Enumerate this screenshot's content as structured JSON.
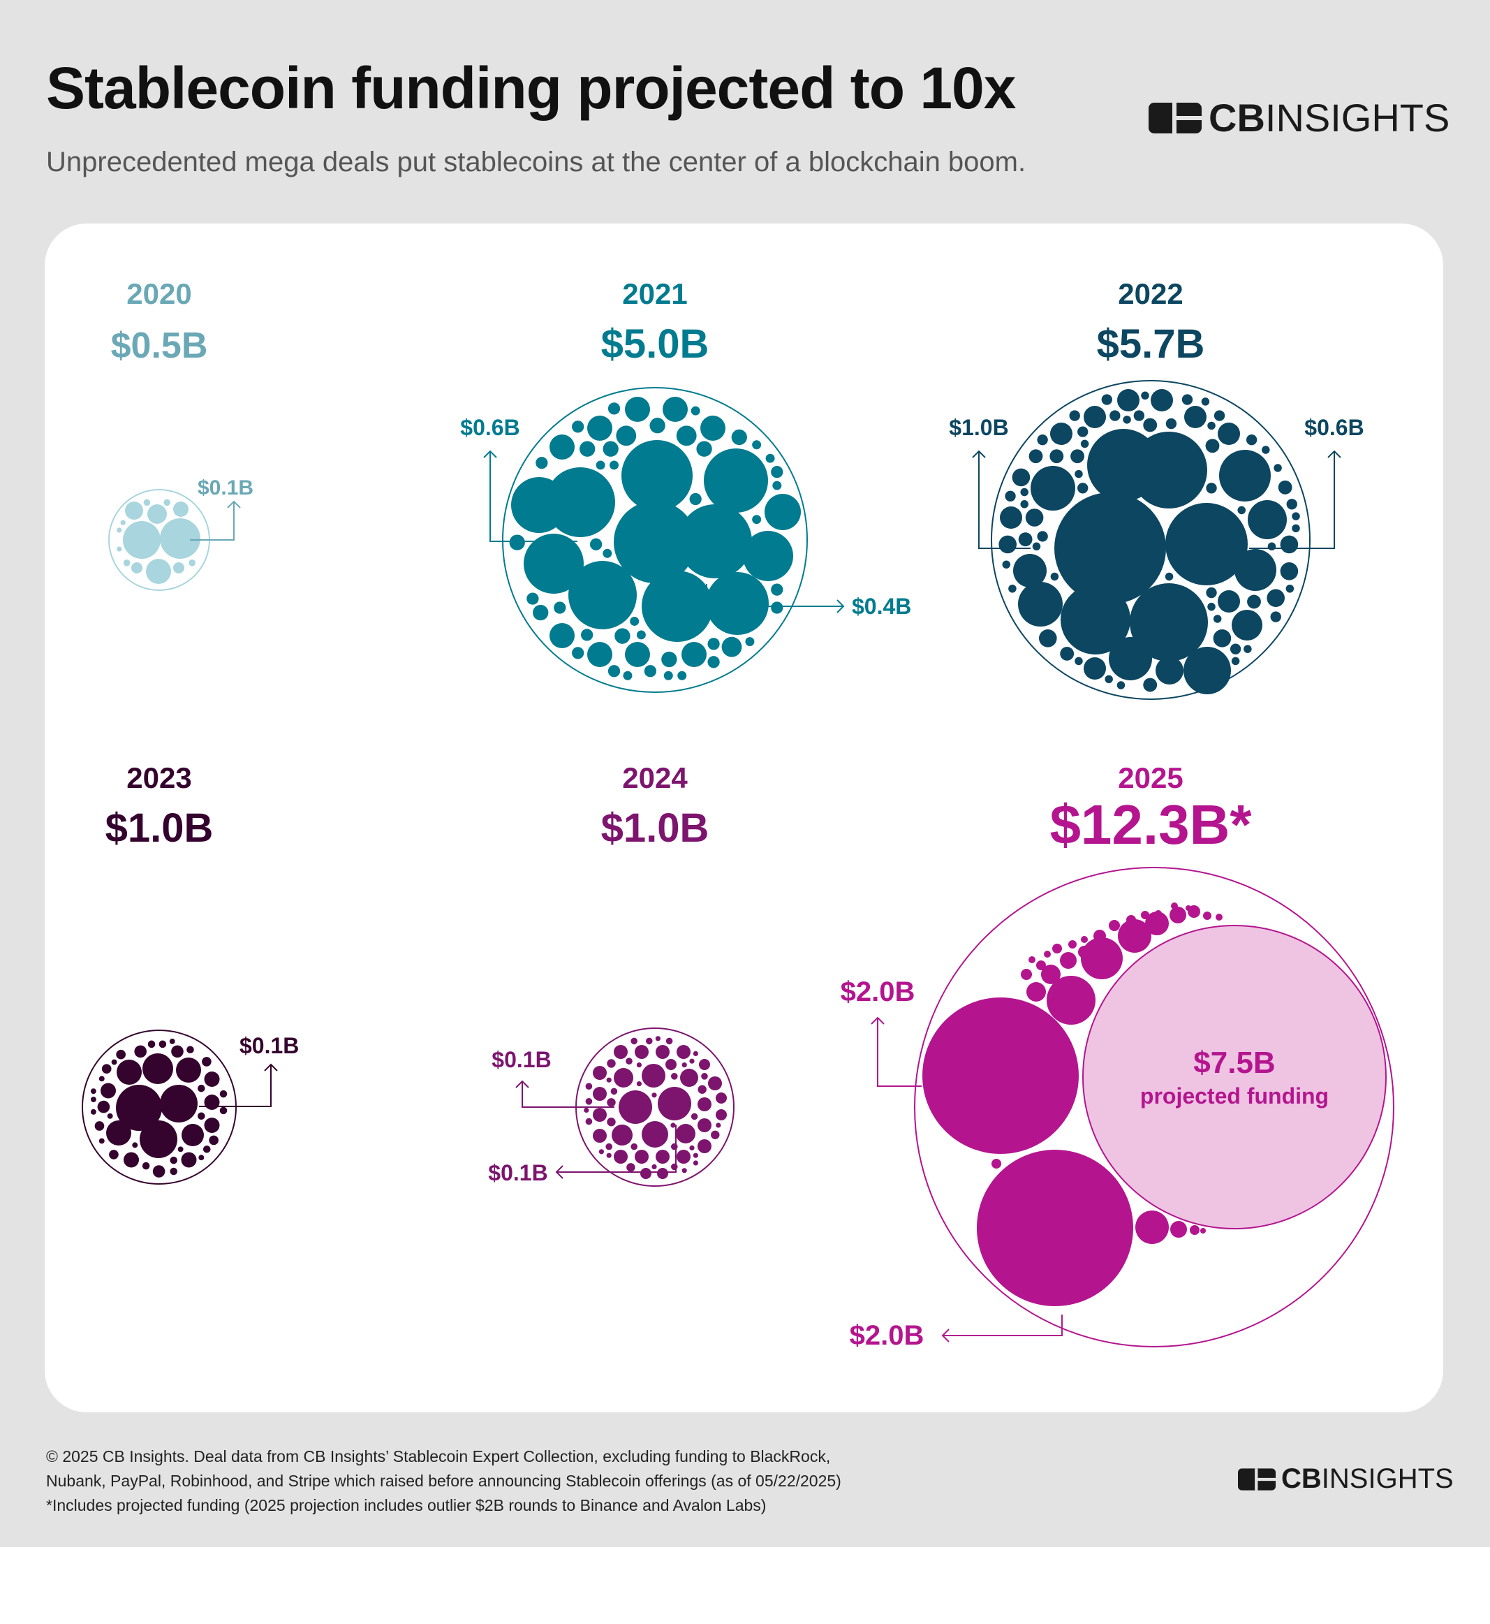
{
  "title": "Stablecoin funding projected to 10x",
  "subtitle": "Unprecedented mega deals put stablecoins at the center of a blockchain boom.",
  "logo": {
    "bold": "CB",
    "light": "INSIGHTS"
  },
  "colors": {
    "2020": "#a8d5de",
    "2020_text": "#6aa8b6",
    "2021": "#007b8f",
    "2022": "#0c4661",
    "2023": "#35042e",
    "2024": "#7d146e",
    "2025": "#b4158f",
    "2025_projected": "#eec4e2"
  },
  "chart_data": {
    "type": "packed-bubble",
    "title": "Stablecoin funding projected to 10x",
    "unit": "$B",
    "years": [
      {
        "year": "2020",
        "total_label": "$0.5B",
        "total": 0.5,
        "annotations": [
          {
            "label": "$0.1B",
            "value": 0.1
          }
        ]
      },
      {
        "year": "2021",
        "total_label": "$5.0B",
        "total": 5.0,
        "annotations": [
          {
            "label": "$0.6B",
            "value": 0.6
          },
          {
            "label": "$0.4B",
            "value": 0.4
          }
        ]
      },
      {
        "year": "2022",
        "total_label": "$5.7B",
        "total": 5.7,
        "annotations": [
          {
            "label": "$1.0B",
            "value": 1.0
          },
          {
            "label": "$0.6B",
            "value": 0.6
          }
        ]
      },
      {
        "year": "2023",
        "total_label": "$1.0B",
        "total": 1.0,
        "annotations": [
          {
            "label": "$0.1B",
            "value": 0.1
          }
        ]
      },
      {
        "year": "2024",
        "total_label": "$1.0B",
        "total": 1.0,
        "annotations": [
          {
            "label": "$0.1B",
            "value": 0.1
          },
          {
            "label": "$0.1B",
            "value": 0.1
          }
        ]
      },
      {
        "year": "2025",
        "total_label": "$12.3B*",
        "total": 12.3,
        "annotations": [
          {
            "label": "$2.0B",
            "value": 2.0
          },
          {
            "label": "$2.0B",
            "value": 2.0
          }
        ],
        "projected": {
          "label": "$7.5B",
          "sublabel": "projected funding",
          "value": 7.5
        }
      }
    ]
  },
  "footnote": [
    "© 2025 CB Insights. Deal data from CB Insights’ Stablecoin Expert Collection, excluding funding to BlackRock,",
    "Nubank, PayPal, Robinhood, and Stripe which raised before announcing Stablecoin offerings (as of 05/22/2025)",
    "*Includes projected funding (2025 projection includes outlier $2B rounds to Binance and Avalon Labs)"
  ]
}
